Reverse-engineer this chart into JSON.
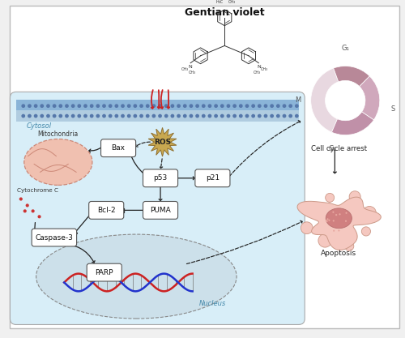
{
  "bg_color": "#f0f0f0",
  "cytosol_label": "Cytosol",
  "nucleus_label": "Nucleus",
  "ros_label": "ROS",
  "mitochondria_label": "Mitochondria",
  "cytochrome_label": "Cytochrome C",
  "cell_cycle_label": "Cell cycle arrest",
  "apoptosis_label": "Apoptosis",
  "gv_label": "Gentian violet",
  "membrane_color": "#8ab4d8",
  "membrane_dot_color": "#5577aa",
  "cytosol_color": "#d8eef8",
  "nucleus_color": "#c5dde8",
  "box_color": "#ffffff",
  "box_border": "#444444",
  "arrow_color": "#222222",
  "ros_color": "#c8a850",
  "mito_color": "#f0c0b0",
  "mito_border": "#cc8877",
  "donut_colors": [
    "#e8d8e0",
    "#c090a8",
    "#d0a8bc",
    "#b88898"
  ],
  "donut_sizes": [
    38,
    22,
    22,
    18
  ],
  "flame_color": "#cc2222",
  "cell_body_color": "#f5c8c0",
  "cell_nuc_color": "#d08080",
  "gv_struct_color": "#333333"
}
